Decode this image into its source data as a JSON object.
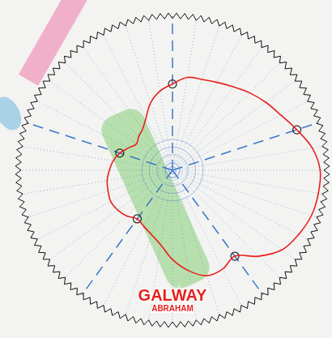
{
  "chart_data": {
    "type": "radar",
    "categories": [
      null,
      null,
      null,
      null,
      null,
      null,
      null,
      null,
      null,
      null,
      null,
      null,
      null,
      null,
      null,
      null,
      null,
      null,
      null,
      null,
      null,
      null,
      null,
      null,
      null,
      null,
      null,
      null,
      null,
      null,
      null,
      null,
      null,
      null,
      null,
      null,
      null,
      null,
      null,
      null
    ],
    "series": [
      {
        "color": "#e8201e",
        "line_style": "solid",
        "marker": "none",
        "values": [
          56,
          61,
          62,
          64,
          67,
          71,
          75,
          79,
          85,
          92,
          96,
          96,
          95,
          92,
          88,
          79,
          69,
          72,
          72,
          66,
          58,
          49,
          44,
          41,
          39,
          42,
          44,
          45,
          44,
          43,
          41,
          39,
          36,
          32,
          29,
          31,
          33,
          38,
          46,
          52
        ]
      },
      {
        "color": "#222222",
        "line_style": "none",
        "marker": "circle",
        "values": [
          56,
          null,
          null,
          null,
          null,
          null,
          null,
          null,
          85,
          null,
          null,
          null,
          null,
          null,
          null,
          null,
          69,
          null,
          null,
          null,
          null,
          null,
          null,
          null,
          39,
          null,
          null,
          null,
          null,
          null,
          null,
          null,
          36,
          null,
          null,
          null,
          null,
          null,
          null,
          null
        ]
      }
    ],
    "ylim": [
      0,
      100
    ],
    "yticks": [
      0,
      5,
      10,
      15,
      20
    ],
    "grid": true,
    "tick_labels": false,
    "annotations": [
      {
        "text": "GALWAY",
        "color": "#e8201e"
      },
      {
        "text": "ABRAHAM",
        "color": "#e8201e"
      }
    ]
  }
}
